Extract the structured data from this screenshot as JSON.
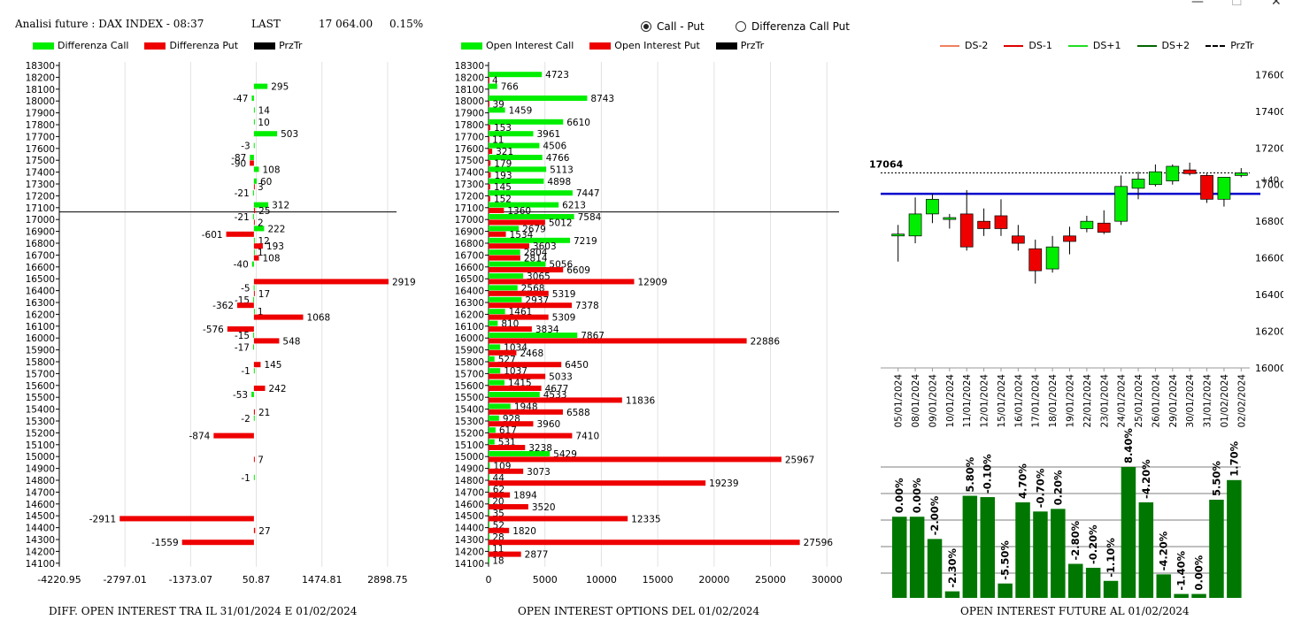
{
  "header": {
    "title": "Analisi future : DAX INDEX - 08:37",
    "last_label": "LAST",
    "last_value": "17 064.00",
    "change": "0.15%"
  },
  "window_controls": {
    "minimize": "—",
    "maximize": "☐",
    "close": "✕"
  },
  "radio": {
    "option1": "Call - Put",
    "option2": "Differenza Call Put",
    "selected": "option1"
  },
  "colors": {
    "green": "#00ee00",
    "red": "#ee0000",
    "blue": "#0000cc",
    "dark_green": "#007700"
  },
  "captions": {
    "left": "DIFF. OPEN INTEREST TRA IL 31/01/2024 E 01/02/2024",
    "middle": "OPEN INTEREST OPTIONS DEL 01/02/2024",
    "right": "OPEN INTEREST FUTURE AL 01/02/2024"
  },
  "chart_data": [
    {
      "type": "bar",
      "orientation": "horizontal",
      "legend": [
        "Differenza Call",
        "Differenza Put",
        "PrzTr"
      ],
      "strikes": [
        18300,
        18200,
        18100,
        18000,
        17900,
        17800,
        17700,
        17600,
        17500,
        17400,
        17300,
        17200,
        17100,
        17000,
        16900,
        16800,
        16700,
        16600,
        16500,
        16400,
        16300,
        16200,
        16100,
        16000,
        15900,
        15800,
        15700,
        15600,
        15500,
        15400,
        15300,
        15200,
        15100,
        15000,
        14900,
        14800,
        14700,
        14600,
        14500,
        14400,
        14300,
        14200,
        14100
      ],
      "x_ticks": [
        "-4220.95",
        "-2797.01",
        "-1373.07",
        "50.87",
        "1474.81",
        "2898.75"
      ],
      "xlim": [
        -4220.95,
        3400
      ],
      "price_line": 17064,
      "series": [
        {
          "name": "Differenza Call",
          "color": "#00ee00",
          "points": [
            [
              18100,
              295
            ],
            [
              18000,
              -47
            ],
            [
              17900,
              14
            ],
            [
              17800,
              10
            ],
            [
              17700,
              503
            ],
            [
              17600,
              -3
            ],
            [
              17500,
              -87
            ],
            [
              17400,
              108
            ],
            [
              17300,
              60
            ],
            [
              17200,
              -21
            ],
            [
              17100,
              312
            ],
            [
              17000,
              -21
            ],
            [
              16900,
              222
            ],
            [
              16800,
              12
            ],
            [
              16700,
              1
            ],
            [
              16600,
              -40
            ],
            [
              16400,
              -5
            ],
            [
              16300,
              -15
            ],
            [
              16200,
              1
            ],
            [
              16000,
              -15
            ],
            [
              15900,
              -17
            ],
            [
              15700,
              -1
            ],
            [
              15500,
              -53
            ],
            [
              15300,
              -2
            ],
            [
              14800,
              -1
            ]
          ]
        },
        {
          "name": "Differenza Put",
          "color": "#ee0000",
          "points": [
            [
              17500,
              -90
            ],
            [
              17300,
              3
            ],
            [
              17100,
              25
            ],
            [
              17000,
              2
            ],
            [
              16900,
              -601
            ],
            [
              16800,
              193
            ],
            [
              16700,
              108
            ],
            [
              16500,
              2919
            ],
            [
              16400,
              17
            ],
            [
              16300,
              -362
            ],
            [
              16200,
              1068
            ],
            [
              16100,
              -576
            ],
            [
              16000,
              548
            ],
            [
              15800,
              145
            ],
            [
              15600,
              242
            ],
            [
              15400,
              21
            ],
            [
              15200,
              -874
            ],
            [
              15000,
              7
            ],
            [
              14500,
              -2911
            ],
            [
              14400,
              27
            ],
            [
              14300,
              -1559
            ]
          ]
        }
      ]
    },
    {
      "type": "bar",
      "orientation": "horizontal",
      "legend": [
        "Open Interest Call",
        "Open Interest Put",
        "PrzTr"
      ],
      "strikes": [
        18300,
        18200,
        18100,
        18000,
        17900,
        17800,
        17700,
        17600,
        17500,
        17400,
        17300,
        17200,
        17100,
        17000,
        16900,
        16800,
        16700,
        16600,
        16500,
        16400,
        16300,
        16200,
        16100,
        16000,
        15900,
        15800,
        15700,
        15600,
        15500,
        15400,
        15300,
        15200,
        15100,
        15000,
        14900,
        14800,
        14700,
        14600,
        14500,
        14400,
        14300,
        14200,
        14100
      ],
      "x_ticks": [
        "0",
        "5000",
        "10000",
        "15000",
        "20000",
        "25000",
        "30000"
      ],
      "xlim": [
        0,
        31000
      ],
      "price_line": 17064,
      "series": [
        {
          "name": "Open Interest Call",
          "color": "#00ee00",
          "points": [
            [
              18200,
              4723
            ],
            [
              18100,
              766
            ],
            [
              18000,
              8743
            ],
            [
              17900,
              1459
            ],
            [
              17800,
              6610
            ],
            [
              17700,
              3961
            ],
            [
              17600,
              4506
            ],
            [
              17500,
              4766
            ],
            [
              17400,
              5113
            ],
            [
              17300,
              4898
            ],
            [
              17200,
              7447
            ],
            [
              17100,
              6213
            ],
            [
              17000,
              7584
            ],
            [
              16900,
              2679
            ],
            [
              16800,
              7219
            ],
            [
              16700,
              2804
            ],
            [
              16600,
              5056
            ],
            [
              16500,
              3065
            ],
            [
              16400,
              2568
            ],
            [
              16300,
              2937
            ],
            [
              16200,
              1461
            ],
            [
              16100,
              810
            ],
            [
              16000,
              7867
            ],
            [
              15900,
              1034
            ],
            [
              15800,
              527
            ],
            [
              15700,
              1037
            ],
            [
              15600,
              1415
            ],
            [
              15500,
              4533
            ],
            [
              15400,
              1948
            ],
            [
              15300,
              928
            ],
            [
              15200,
              617
            ],
            [
              15100,
              531
            ],
            [
              15000,
              5429
            ],
            [
              14900,
              109
            ],
            [
              14800,
              44
            ],
            [
              14700,
              62
            ],
            [
              14600,
              20
            ],
            [
              14500,
              35
            ],
            [
              14400,
              52
            ],
            [
              14300,
              28
            ],
            [
              14200,
              11
            ],
            [
              14100,
              18
            ]
          ]
        },
        {
          "name": "Open Interest Put",
          "color": "#ee0000",
          "points": [
            [
              18200,
              4
            ],
            [
              18000,
              39
            ],
            [
              17800,
              153
            ],
            [
              17700,
              11
            ],
            [
              17600,
              321
            ],
            [
              17500,
              179
            ],
            [
              17400,
              193
            ],
            [
              17300,
              145
            ],
            [
              17200,
              152
            ],
            [
              17100,
              1360
            ],
            [
              17000,
              5012
            ],
            [
              16900,
              1534
            ],
            [
              16800,
              3603
            ],
            [
              16700,
              2814
            ],
            [
              16600,
              6609
            ],
            [
              16500,
              12909
            ],
            [
              16400,
              5319
            ],
            [
              16300,
              7378
            ],
            [
              16200,
              5309
            ],
            [
              16100,
              3834
            ],
            [
              16000,
              22886
            ],
            [
              15900,
              2468
            ],
            [
              15800,
              6450
            ],
            [
              15700,
              5033
            ],
            [
              15600,
              4677
            ],
            [
              15500,
              11836
            ],
            [
              15400,
              6588
            ],
            [
              15300,
              3960
            ],
            [
              15200,
              7410
            ],
            [
              15100,
              3238
            ],
            [
              15000,
              25967
            ],
            [
              14900,
              3073
            ],
            [
              14800,
              19239
            ],
            [
              14700,
              1894
            ],
            [
              14600,
              3520
            ],
            [
              14500,
              12335
            ],
            [
              14400,
              1820
            ],
            [
              14300,
              27596
            ],
            [
              14200,
              2877
            ]
          ]
        }
      ]
    },
    {
      "type": "candlestick",
      "legend": [
        "DS-2",
        "DS-1",
        "DS+1",
        "DS+2",
        "PrzTr"
      ],
      "dates": [
        "05/01/2024",
        "08/01/2024",
        "09/01/2024",
        "10/01/2024",
        "11/01/2024",
        "12/01/2024",
        "15/01/2024",
        "16/01/2024",
        "17/01/2024",
        "18/01/2024",
        "19/01/2024",
        "22/01/2024",
        "23/01/2024",
        "24/01/2024",
        "25/01/2024",
        "26/01/2024",
        "29/01/2024",
        "30/01/2024",
        "31/01/2024",
        "01/02/2024",
        "02/02/2024"
      ],
      "y_ticks": [
        16000,
        16200,
        16400,
        16600,
        16800,
        17000,
        17200,
        17400,
        17600
      ],
      "ylim": [
        16000,
        17650
      ],
      "price_label": "17064",
      "price": 17064,
      "level_line": 16950,
      "level_label": "+40",
      "ohlc": [
        [
          16720,
          16780,
          16580,
          16730
        ],
        [
          16720,
          16930,
          16680,
          16840
        ],
        [
          16840,
          16950,
          16790,
          16920
        ],
        [
          16810,
          16840,
          16760,
          16820
        ],
        [
          16840,
          16970,
          16640,
          16660
        ],
        [
          16800,
          16870,
          16720,
          16760
        ],
        [
          16830,
          16920,
          16720,
          16760
        ],
        [
          16720,
          16780,
          16640,
          16680
        ],
        [
          16650,
          16700,
          16460,
          16530
        ],
        [
          16540,
          16720,
          16520,
          16660
        ],
        [
          16720,
          16770,
          16620,
          16690
        ],
        [
          16760,
          16830,
          16740,
          16800
        ],
        [
          16790,
          16860,
          16730,
          16740
        ],
        [
          16800,
          17050,
          16780,
          16990
        ],
        [
          16980,
          17070,
          16920,
          17030
        ],
        [
          17000,
          17110,
          16990,
          17070
        ],
        [
          17020,
          17110,
          17000,
          17100
        ],
        [
          17080,
          17120,
          17050,
          17060
        ],
        [
          17050,
          17060,
          16900,
          16920
        ],
        [
          16920,
          17040,
          16880,
          17040
        ],
        [
          17050,
          17090,
          17040,
          17064
        ]
      ],
      "oi_change_labels": [
        "0.00%",
        "0.00%",
        "-2.00%",
        "-2.30%",
        "5.80%",
        "-0.10%",
        "-5.50%",
        "4.70%",
        "-0.70%",
        "0.20%",
        "-2.80%",
        "-0.20%",
        "-1.10%",
        "8.40%",
        "-4.20%",
        "-4.20%",
        "-1.40%",
        "0.00%",
        "5.50%",
        "1.70%"
      ],
      "oi_levels": [
        0.62,
        0.62,
        0.45,
        0.05,
        0.78,
        0.77,
        0.11,
        0.73,
        0.66,
        0.68,
        0.26,
        0.23,
        0.13,
        1.0,
        0.73,
        0.18,
        0.03,
        0.03,
        0.75,
        0.9
      ]
    }
  ]
}
